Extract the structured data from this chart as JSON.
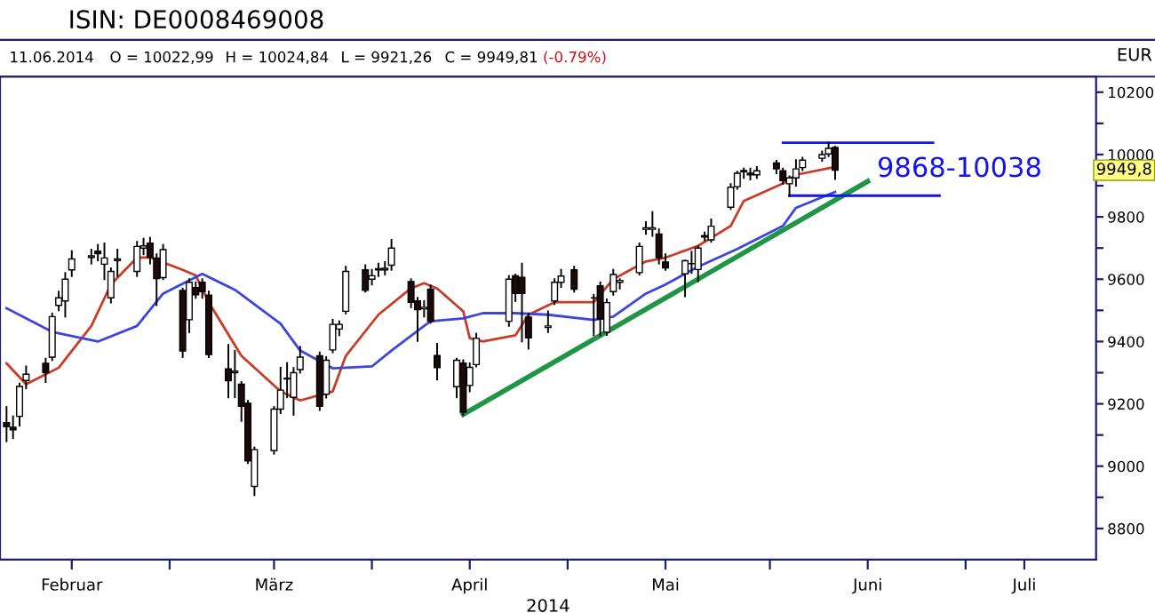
{
  "chart_data": {
    "type": "candlestick",
    "title": "ISIN: DE0008469008",
    "xlabel": "2014",
    "ylabel": "EUR",
    "annotations": [
      "11.06.2014",
      "O = 10022,99",
      "H = 10024,84",
      "L = 9921,26",
      "C = 9949,81",
      "(-0.79%)",
      "9868-10038",
      "9949,8"
    ],
    "x": [
      "2014-02-04",
      "2014-02-05",
      "2014-02-06",
      "2014-02-07",
      "2014-02-10",
      "2014-02-11",
      "2014-02-12",
      "2014-02-13",
      "2014-02-14",
      "2014-02-17",
      "2014-02-18",
      "2014-02-19",
      "2014-02-20",
      "2014-02-21",
      "2014-02-24",
      "2014-02-25",
      "2014-02-26",
      "2014-02-27",
      "2014-02-28",
      "2014-03-03",
      "2014-03-04",
      "2014-03-05",
      "2014-03-06",
      "2014-03-07",
      "2014-03-10",
      "2014-03-11",
      "2014-03-12",
      "2014-03-13",
      "2014-03-14",
      "2014-03-17",
      "2014-03-18",
      "2014-03-19",
      "2014-03-20",
      "2014-03-21",
      "2014-03-24",
      "2014-03-25",
      "2014-03-26",
      "2014-03-27",
      "2014-03-28",
      "2014-03-31",
      "2014-04-01",
      "2014-04-02",
      "2014-04-03",
      "2014-04-04",
      "2014-04-07",
      "2014-04-08",
      "2014-04-09",
      "2014-04-10",
      "2014-04-11",
      "2014-04-14",
      "2014-04-15",
      "2014-04-16",
      "2014-04-17",
      "2014-04-22",
      "2014-04-23",
      "2014-04-24",
      "2014-04-25",
      "2014-04-28",
      "2014-04-29",
      "2014-04-30",
      "2014-05-02",
      "2014-05-05",
      "2014-05-06",
      "2014-05-07",
      "2014-05-08",
      "2014-05-09",
      "2014-05-12",
      "2014-05-13",
      "2014-05-14",
      "2014-05-15",
      "2014-05-16",
      "2014-05-19",
      "2014-05-20",
      "2014-05-21",
      "2014-05-22",
      "2014-05-23",
      "2014-05-26",
      "2014-05-27",
      "2014-05-28",
      "2014-05-29",
      "2014-05-30",
      "2014-06-02",
      "2014-06-03",
      "2014-06-04",
      "2014-06-05",
      "2014-06-06",
      "2014-06-09",
      "2014-06-10",
      "2014-06-11"
    ],
    "ohlc": [
      [
        9140,
        9190,
        9080,
        9127
      ],
      [
        9125,
        9160,
        9090,
        9117
      ],
      [
        9160,
        9265,
        9130,
        9256
      ],
      [
        9275,
        9320,
        9250,
        9295
      ],
      [
        9330,
        9345,
        9270,
        9300
      ],
      [
        9350,
        9490,
        9340,
        9480
      ],
      [
        9516,
        9560,
        9500,
        9540
      ],
      [
        9530,
        9620,
        9480,
        9600
      ],
      [
        9630,
        9690,
        9610,
        9665
      ],
      [
        9670,
        9695,
        9650,
        9675
      ],
      [
        9690,
        9710,
        9660,
        9682
      ],
      [
        9648,
        9715,
        9600,
        9668
      ],
      [
        9540,
        9635,
        9525,
        9625
      ],
      [
        9660,
        9695,
        9610,
        9665
      ],
      [
        9625,
        9720,
        9610,
        9705
      ],
      [
        9700,
        9730,
        9680,
        9707
      ],
      [
        9716,
        9733,
        9650,
        9670
      ],
      [
        9668,
        9680,
        9517,
        9602
      ],
      [
        9605,
        9710,
        9600,
        9695
      ],
      [
        9564,
        9570,
        9350,
        9370
      ],
      [
        9470,
        9600,
        9430,
        9590
      ],
      [
        9573,
        9590,
        9540,
        9550
      ],
      [
        9590,
        9600,
        9540,
        9560
      ],
      [
        9549,
        9560,
        9350,
        9358
      ],
      [
        9312,
        9389,
        9221,
        9274
      ],
      [
        9300,
        9370,
        9221,
        9305
      ],
      [
        9263,
        9270,
        9145,
        9192
      ],
      [
        9202,
        9210,
        9010,
        9017
      ],
      [
        8935,
        9060,
        8907,
        9053
      ],
      [
        9050,
        9190,
        9040,
        9183
      ],
      [
        9183,
        9316,
        9170,
        9244
      ],
      [
        9280,
        9331,
        9221,
        9282
      ],
      [
        9221,
        9315,
        9165,
        9300
      ],
      [
        9310,
        9383,
        9300,
        9350
      ],
      [
        9354,
        9365,
        9180,
        9192
      ],
      [
        9231,
        9350,
        9220,
        9340
      ],
      [
        9373,
        9470,
        9365,
        9455
      ],
      [
        9440,
        9465,
        9420,
        9455
      ],
      [
        9497,
        9640,
        9490,
        9625
      ],
      [
        9630,
        9645,
        9560,
        9564
      ],
      [
        9600,
        9630,
        9583,
        9611
      ],
      [
        9630,
        9650,
        9610,
        9634
      ],
      [
        9630,
        9655,
        9615,
        9635
      ],
      [
        9645,
        9726,
        9630,
        9700
      ],
      [
        9592,
        9600,
        9510,
        9526
      ],
      [
        9530,
        9540,
        9402,
        9502
      ],
      [
        9505,
        9530,
        9480,
        9510
      ],
      [
        9568,
        9580,
        9460,
        9465
      ],
      [
        9355,
        9393,
        9278,
        9316
      ],
      [
        9255,
        9345,
        9221,
        9340
      ],
      [
        9331,
        9340,
        9165,
        9173
      ],
      [
        9259,
        9330,
        9240,
        9317
      ],
      [
        9326,
        9425,
        9320,
        9410
      ],
      [
        9465,
        9610,
        9450,
        9600
      ],
      [
        9611,
        9615,
        9530,
        9554
      ],
      [
        9606,
        9650,
        9400,
        9554
      ],
      [
        9478,
        9490,
        9377,
        9412
      ],
      [
        9445,
        9497,
        9430,
        9450
      ],
      [
        9530,
        9600,
        9520,
        9590
      ],
      [
        9590,
        9630,
        9575,
        9610
      ],
      [
        9630,
        9640,
        9560,
        9568
      ],
      [
        9540,
        9550,
        9420,
        9540
      ],
      [
        9579,
        9590,
        9420,
        9472
      ],
      [
        9430,
        9535,
        9421,
        9525
      ],
      [
        9560,
        9630,
        9550,
        9615
      ],
      [
        9590,
        9600,
        9570,
        9596
      ],
      [
        9621,
        9715,
        9615,
        9705
      ],
      [
        9760,
        9783,
        9745,
        9765
      ],
      [
        9760,
        9815,
        9739,
        9765
      ],
      [
        9745,
        9760,
        9650,
        9669
      ],
      [
        9655,
        9680,
        9630,
        9636
      ],
      [
        9617,
        9660,
        9545,
        9659
      ],
      [
        9650,
        9688,
        9620,
        9650
      ],
      [
        9631,
        9705,
        9593,
        9700
      ],
      [
        9740,
        9750,
        9725,
        9735
      ],
      [
        9726,
        9792,
        9720,
        9770
      ],
      [
        9831,
        9905,
        9825,
        9895
      ],
      [
        9897,
        9945,
        9890,
        9940
      ],
      [
        9945,
        9955,
        9925,
        9949
      ],
      [
        9940,
        9955,
        9920,
        9935
      ],
      [
        9935,
        9960,
        9925,
        9948
      ],
      [
        9973,
        9980,
        9940,
        9954
      ],
      [
        9948,
        9955,
        9906,
        9916
      ],
      [
        9906,
        9930,
        9867,
        9925
      ],
      [
        9925,
        9982,
        9900,
        9954
      ],
      [
        9958,
        9990,
        9950,
        9982
      ],
      [
        9988,
        10010,
        9980,
        10000
      ],
      [
        10002,
        10038,
        9995,
        10020
      ],
      [
        10022.99,
        10024.84,
        9921.26,
        9949.81
      ]
    ],
    "series": [
      {
        "type": "line",
        "color": "#c83c28",
        "x": [
          "2014-02-04",
          "2014-02-07",
          "2014-02-12",
          "2014-02-17",
          "2014-02-20",
          "2014-02-24",
          "2014-02-26",
          "2014-03-03",
          "2014-03-05",
          "2014-03-07",
          "2014-03-12",
          "2014-03-18",
          "2014-03-21",
          "2014-03-26",
          "2014-03-28",
          "2014-04-02",
          "2014-04-07",
          "2014-04-09",
          "2014-04-11",
          "2014-04-15",
          "2014-04-16",
          "2014-04-18",
          "2014-04-23",
          "2014-04-25",
          "2014-04-29",
          "2014-05-05",
          "2014-05-08",
          "2014-05-13",
          "2014-05-16",
          "2014-05-21",
          "2014-05-26",
          "2014-05-28",
          "2014-06-03",
          "2014-06-05",
          "2014-06-11"
        ],
        "values": [
          9330,
          9263,
          9316,
          9450,
          9583,
          9669,
          9670,
          9630,
          9612,
          9526,
          9354,
          9240,
          9211,
          9240,
          9354,
          9486,
          9571,
          9587,
          9570,
          9497,
          9411,
          9400,
          9420,
          9486,
          9526,
          9526,
          9600,
          9657,
          9669,
          9707,
          9771,
          9851,
          9907,
          9935,
          9960
        ]
      },
      {
        "type": "line",
        "color": "#3c46dc",
        "x": [
          "2014-02-04",
          "2014-02-11",
          "2014-02-18",
          "2014-02-24",
          "2014-02-28",
          "2014-03-06",
          "2014-03-11",
          "2014-03-18",
          "2014-03-21",
          "2014-03-26",
          "2014-04-01",
          "2014-04-04",
          "2014-04-09",
          "2014-04-10",
          "2014-04-15",
          "2014-04-18",
          "2014-04-23",
          "2014-04-28",
          "2014-05-05",
          "2014-05-08",
          "2014-05-13",
          "2014-05-16",
          "2014-05-21",
          "2014-05-27",
          "2014-06-03",
          "2014-06-05",
          "2014-06-11"
        ],
        "values": [
          9507,
          9431,
          9400,
          9450,
          9554,
          9617,
          9566,
          9457,
          9371,
          9314,
          9320,
          9371,
          9450,
          9465,
          9474,
          9491,
          9491,
          9486,
          9469,
          9480,
          9554,
          9583,
          9640,
          9697,
          9771,
          9829,
          9880
        ]
      },
      {
        "type": "line",
        "color": "#1e9646",
        "x": [
          "2014-04-15",
          "2014-06-16"
        ],
        "values": [
          9166,
          9914
        ]
      },
      {
        "type": "line",
        "color": "#1414f0",
        "x": [
          "2014-06-03",
          "2014-06-26"
        ],
        "values": [
          10038,
          10038
        ]
      },
      {
        "type": "line",
        "color": "#1414f0",
        "x": [
          "2014-06-04",
          "2014-06-27"
        ],
        "values": [
          9868,
          9868
        ]
      }
    ],
    "xlim": [
      "2014-02-03",
      "2014-07-21"
    ],
    "xticks": [
      {
        "value": "2014-02-14",
        "label": "Februar"
      },
      {
        "value": "2014-03-01",
        "label": null
      },
      {
        "value": "2014-03-17",
        "label": "März"
      },
      {
        "value": "2014-04-01",
        "label": null
      },
      {
        "value": "2014-04-16",
        "label": "April"
      },
      {
        "value": "2014-05-01",
        "label": null
      },
      {
        "value": "2014-05-16",
        "label": "Mai"
      },
      {
        "value": "2014-06-01",
        "label": null
      },
      {
        "value": "2014-06-16",
        "label": "Juni"
      },
      {
        "value": "2014-07-01",
        "label": null
      },
      {
        "value": "2014-07-10",
        "label": "Juli"
      }
    ],
    "ylim": [
      8700,
      10250
    ],
    "yticks": [
      8800,
      {
        "value": 8900,
        "label": null
      },
      9000,
      {
        "value": 9100,
        "label": null
      },
      9200,
      {
        "value": 9300,
        "label": null
      },
      9400,
      {
        "value": 9500,
        "label": null
      },
      9600,
      {
        "value": 9700,
        "label": null
      },
      9800,
      {
        "value": 9900,
        "label": null
      },
      10000,
      {
        "value": 10100,
        "label": null
      },
      10200
    ]
  }
}
